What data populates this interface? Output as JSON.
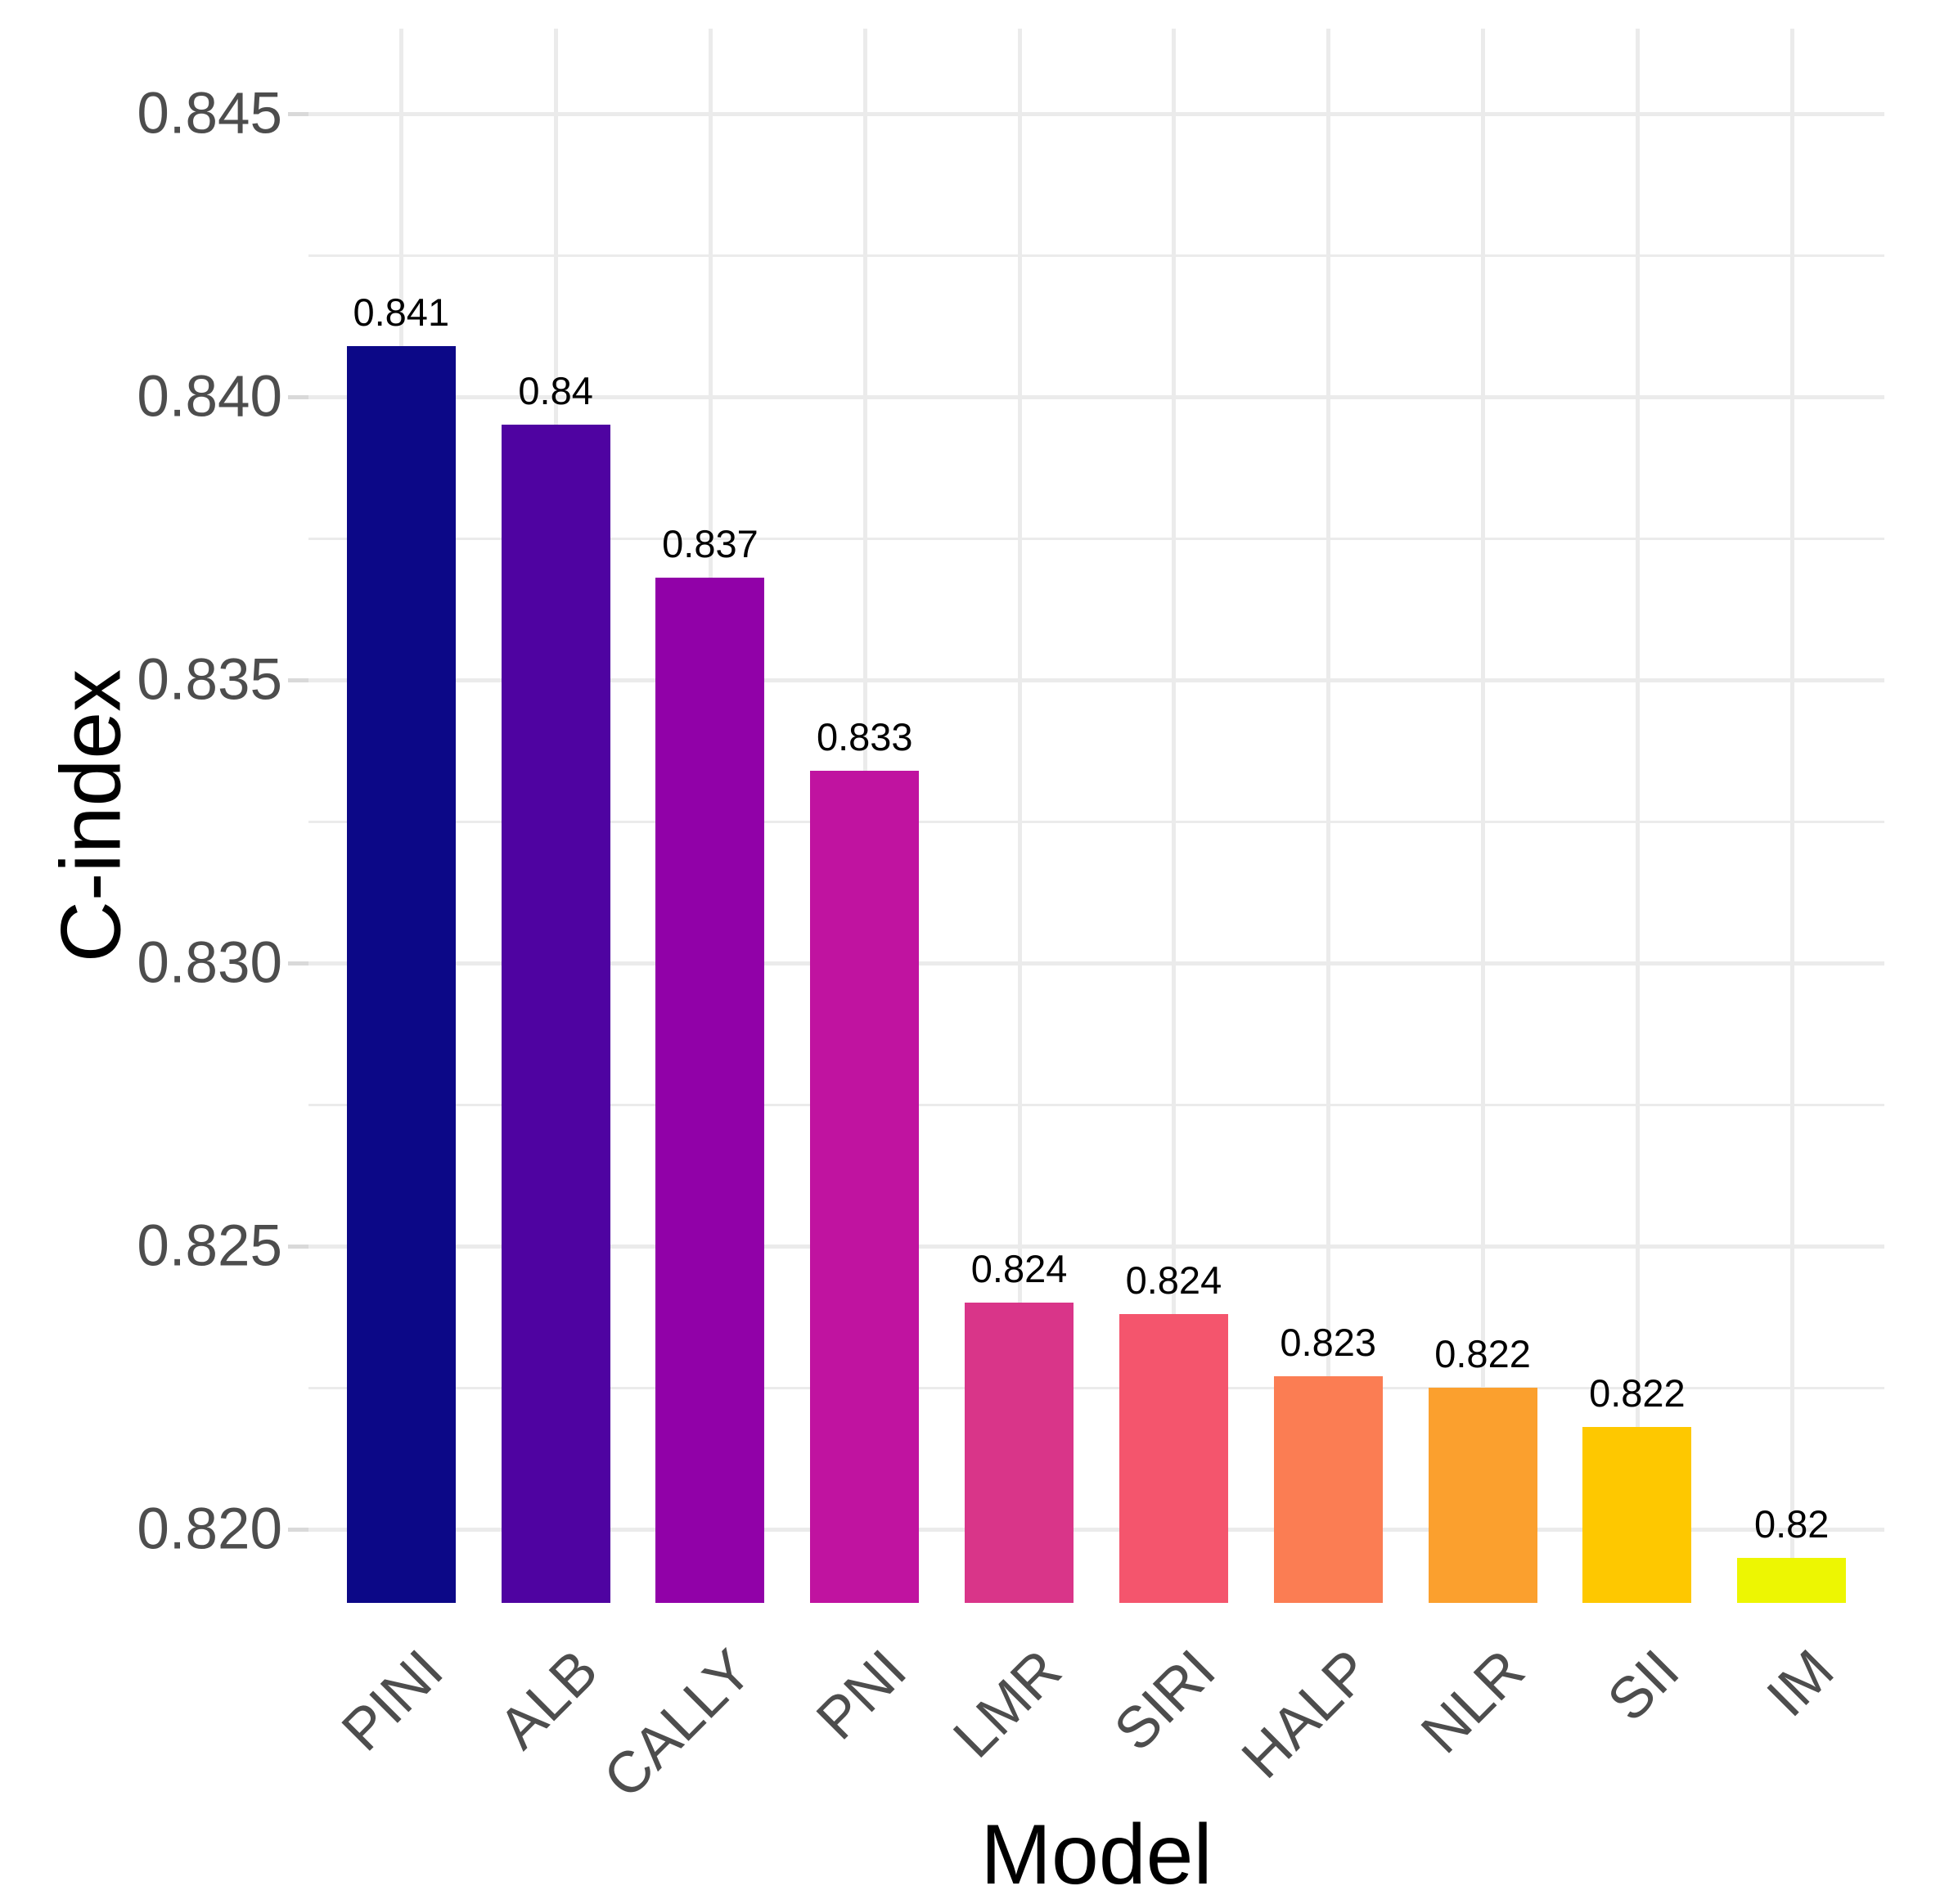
{
  "chart_data": {
    "type": "bar",
    "title": "",
    "xlabel": "Model",
    "ylabel": "C-index",
    "categories": [
      "PINI",
      "ALB",
      "CALLY",
      "PNI",
      "LMR",
      "SIRI",
      "HALP",
      "NLR",
      "SII",
      "IM"
    ],
    "values": [
      0.8409,
      0.8395,
      0.8368,
      0.8334,
      0.824,
      0.8238,
      0.8227,
      0.8225,
      0.8218,
      0.8195
    ],
    "bar_labels": [
      "0.841",
      "0.84",
      "0.837",
      "0.833",
      "0.824",
      "0.824",
      "0.823",
      "0.822",
      "0.822",
      "0.82"
    ],
    "bar_colors": [
      "#0c0887",
      "#4f03a1",
      "#9101a8",
      "#c013a0",
      "#d93589",
      "#f4556d",
      "#fb7d53",
      "#fba02e",
      "#fec800",
      "#edf602"
    ],
    "ylim": [
      0.8187,
      0.8465
    ],
    "yticks": [
      "0.820",
      "0.825",
      "0.830",
      "0.835",
      "0.840",
      "0.845"
    ],
    "ytick_values": [
      0.82,
      0.825,
      0.83,
      0.835,
      0.84,
      0.845
    ],
    "ytick_minor_values": [
      0.8225,
      0.8275,
      0.8325,
      0.8375,
      0.8425
    ],
    "grid": true,
    "legend": false,
    "colors": {
      "background": "#ffffff",
      "gridline": "#ebebeb",
      "tick_label": "#4d4d4d",
      "axis_title": "#000000",
      "bar_value_label": "#000000",
      "tick_mark": "#d9d9d9"
    }
  }
}
